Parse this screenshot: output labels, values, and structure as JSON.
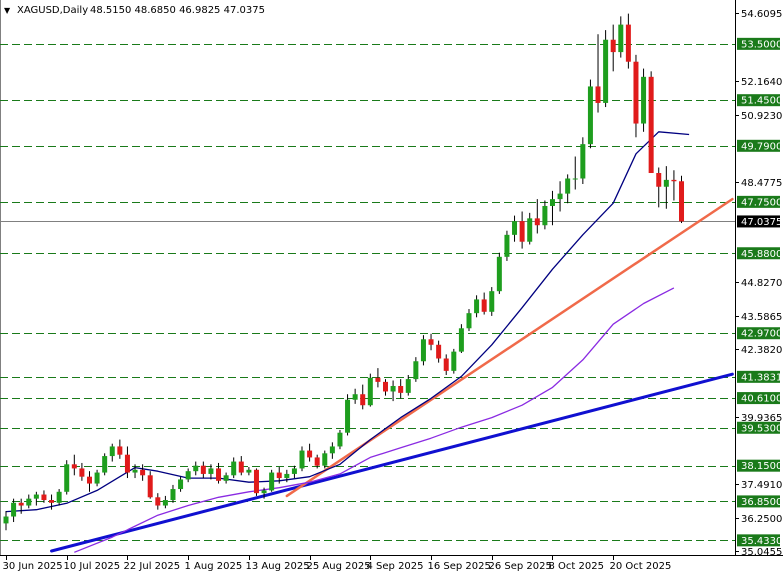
{
  "header": {
    "collapse_glyph": "▼",
    "symbol": "XAGUSD,Daily",
    "ohlc": "48.5150 48.6850 46.9825 47.0375"
  },
  "colors": {
    "background": "#ffffff",
    "bull": "#1e9e1e",
    "bear": "#e01b1b",
    "sma_short": "#000080",
    "sma_long": "#8a2be2",
    "trend_red": "#f06a4a",
    "trend_blue": "#1010d0",
    "level_line": "#1a7a1a",
    "level_label_bg": "#1a7a1a",
    "price_label_bg": "#000000"
  },
  "chart_data": {
    "type": "candlestick",
    "symbol": "XAGUSD",
    "timeframe": "Daily",
    "ylim": [
      35.0455,
      54.95
    ],
    "y_ticks": [
      "54.6095",
      "52.1640",
      "50.9230",
      "48.4775",
      "44.8270",
      "43.5865",
      "42.3820",
      "39.9365",
      "37.4910",
      "36.2500",
      "35.0455"
    ],
    "x_ticks": [
      {
        "label": "30 Jun 2025",
        "i": 0
      },
      {
        "label": "10 Jul 2025",
        "i": 8
      },
      {
        "label": "22 Jul 2025",
        "i": 16
      },
      {
        "label": "1 Aug 2025",
        "i": 24
      },
      {
        "label": "13 Aug 2025",
        "i": 32
      },
      {
        "label": "25 Aug 2025",
        "i": 40
      },
      {
        "label": "4 Sep 2025",
        "i": 48
      },
      {
        "label": "16 Sep 2025",
        "i": 56
      },
      {
        "label": "26 Sep 2025",
        "i": 64
      },
      {
        "label": "8 Oct 2025",
        "i": 72
      },
      {
        "label": "20 Oct 2025",
        "i": 80
      }
    ],
    "levels": [
      "53.5000",
      "51.4500",
      "49.7900",
      "47.7500",
      "45.8800",
      "42.9700",
      "41.3831",
      "40.6100",
      "39.5300",
      "38.1500",
      "36.8500",
      "35.4330"
    ],
    "current_price": "47.0375",
    "candles": [
      [
        36.05,
        36.5,
        35.8,
        36.3
      ],
      [
        36.3,
        36.95,
        36.1,
        36.8
      ],
      [
        36.8,
        36.95,
        36.4,
        36.7
      ],
      [
        36.7,
        37.1,
        36.6,
        36.95
      ],
      [
        36.95,
        37.2,
        36.7,
        37.1
      ],
      [
        37.1,
        37.25,
        36.8,
        36.9
      ],
      [
        36.9,
        37.1,
        36.55,
        36.8
      ],
      [
        36.8,
        37.3,
        36.7,
        37.2
      ],
      [
        37.2,
        38.35,
        37.1,
        38.2
      ],
      [
        38.2,
        38.55,
        37.8,
        38.05
      ],
      [
        38.05,
        38.25,
        37.6,
        37.75
      ],
      [
        37.75,
        37.95,
        37.2,
        37.5
      ],
      [
        37.5,
        38.0,
        37.4,
        37.9
      ],
      [
        37.9,
        38.6,
        37.8,
        38.5
      ],
      [
        38.5,
        38.95,
        38.3,
        38.85
      ],
      [
        38.85,
        39.1,
        38.4,
        38.55
      ],
      [
        38.55,
        38.85,
        37.7,
        37.9
      ],
      [
        37.9,
        38.2,
        37.7,
        38.0
      ],
      [
        38.0,
        38.2,
        37.6,
        37.8
      ],
      [
        37.8,
        37.95,
        36.95,
        37.0
      ],
      [
        37.0,
        37.15,
        36.55,
        36.7
      ],
      [
        36.7,
        37.05,
        36.6,
        36.9
      ],
      [
        36.9,
        37.45,
        36.8,
        37.3
      ],
      [
        37.3,
        37.75,
        37.2,
        37.65
      ],
      [
        37.65,
        38.05,
        37.55,
        37.95
      ],
      [
        37.95,
        38.3,
        37.8,
        38.15
      ],
      [
        38.15,
        38.3,
        37.7,
        37.85
      ],
      [
        37.85,
        38.2,
        37.65,
        38.05
      ],
      [
        38.05,
        38.25,
        37.5,
        37.6
      ],
      [
        37.6,
        37.9,
        37.5,
        37.8
      ],
      [
        37.8,
        38.45,
        37.7,
        38.3
      ],
      [
        38.3,
        38.5,
        37.8,
        37.9
      ],
      [
        37.9,
        38.1,
        37.8,
        38.0
      ],
      [
        38.0,
        38.05,
        37.05,
        37.15
      ],
      [
        37.15,
        37.35,
        36.95,
        37.25
      ],
      [
        37.25,
        38.0,
        37.2,
        37.9
      ],
      [
        37.9,
        38.1,
        37.5,
        37.7
      ],
      [
        37.7,
        38.0,
        37.55,
        37.85
      ],
      [
        37.85,
        38.15,
        37.7,
        38.05
      ],
      [
        38.05,
        38.85,
        37.95,
        38.7
      ],
      [
        38.7,
        38.95,
        38.3,
        38.45
      ],
      [
        38.45,
        38.55,
        38.05,
        38.15
      ],
      [
        38.15,
        38.7,
        38.05,
        38.6
      ],
      [
        38.6,
        39.0,
        38.4,
        38.85
      ],
      [
        38.85,
        39.45,
        38.75,
        39.35
      ],
      [
        39.35,
        40.75,
        39.25,
        40.55
      ],
      [
        40.55,
        40.95,
        40.4,
        40.75
      ],
      [
        40.75,
        41.1,
        40.2,
        40.35
      ],
      [
        40.35,
        41.5,
        40.3,
        41.35
      ],
      [
        41.35,
        41.7,
        41.0,
        41.2
      ],
      [
        41.2,
        41.3,
        40.7,
        40.85
      ],
      [
        40.85,
        41.25,
        40.5,
        41.05
      ],
      [
        41.05,
        41.3,
        40.6,
        40.8
      ],
      [
        40.8,
        41.45,
        40.7,
        41.3
      ],
      [
        41.3,
        42.1,
        41.2,
        41.95
      ],
      [
        41.95,
        42.9,
        41.8,
        42.75
      ],
      [
        42.75,
        42.95,
        42.35,
        42.55
      ],
      [
        42.55,
        42.7,
        41.9,
        42.05
      ],
      [
        42.05,
        42.2,
        41.45,
        41.6
      ],
      [
        41.6,
        42.4,
        41.5,
        42.3
      ],
      [
        42.3,
        43.3,
        42.25,
        43.15
      ],
      [
        43.15,
        43.85,
        43.05,
        43.7
      ],
      [
        43.7,
        44.35,
        43.55,
        44.2
      ],
      [
        44.2,
        44.45,
        43.65,
        43.75
      ],
      [
        43.75,
        44.65,
        43.6,
        44.5
      ],
      [
        44.5,
        45.9,
        44.4,
        45.75
      ],
      [
        45.75,
        46.7,
        45.6,
        46.55
      ],
      [
        46.55,
        47.25,
        46.3,
        47.05
      ],
      [
        47.05,
        47.4,
        46.05,
        46.3
      ],
      [
        46.3,
        47.35,
        46.2,
        47.15
      ],
      [
        47.15,
        47.85,
        46.6,
        46.9
      ],
      [
        46.9,
        47.8,
        46.75,
        47.6
      ],
      [
        47.6,
        48.15,
        46.9,
        47.85
      ],
      [
        47.85,
        48.5,
        47.4,
        48.05
      ],
      [
        48.05,
        48.75,
        47.7,
        48.6
      ],
      [
        48.6,
        49.4,
        48.2,
        48.6
      ],
      [
        48.6,
        50.1,
        48.4,
        49.85
      ],
      [
        49.85,
        52.2,
        49.7,
        51.95
      ],
      [
        51.95,
        53.85,
        51.0,
        51.35
      ],
      [
        51.35,
        54.0,
        51.2,
        53.65
      ],
      [
        53.65,
        54.2,
        52.5,
        53.2
      ],
      [
        53.2,
        54.5,
        53.0,
        54.2
      ],
      [
        54.2,
        54.6,
        52.6,
        52.85
      ],
      [
        52.85,
        53.1,
        50.1,
        50.6
      ],
      [
        50.6,
        52.6,
        50.3,
        52.3
      ],
      [
        52.3,
        52.5,
        48.9,
        48.8
      ],
      [
        48.8,
        49.0,
        47.55,
        48.3
      ],
      [
        48.3,
        49.05,
        47.5,
        48.55
      ],
      [
        48.55,
        48.9,
        47.8,
        48.5
      ],
      [
        48.5,
        48.7,
        46.98,
        47.04
      ]
    ],
    "sma_short_path": [
      [
        0,
        36.48
      ],
      [
        4,
        36.55
      ],
      [
        8,
        36.78
      ],
      [
        12,
        37.25
      ],
      [
        15,
        37.75
      ],
      [
        17,
        38.08
      ],
      [
        20,
        37.95
      ],
      [
        24,
        37.7
      ],
      [
        28,
        37.7
      ],
      [
        32,
        37.55
      ],
      [
        36,
        37.6
      ],
      [
        40,
        37.75
      ],
      [
        44,
        38.2
      ],
      [
        48,
        39.1
      ],
      [
        52,
        39.9
      ],
      [
        56,
        40.6
      ],
      [
        60,
        41.4
      ],
      [
        64,
        42.55
      ],
      [
        68,
        43.9
      ],
      [
        72,
        45.3
      ],
      [
        76,
        46.55
      ],
      [
        80,
        47.7
      ],
      [
        83,
        49.5
      ],
      [
        86,
        50.3
      ],
      [
        90,
        50.2
      ]
    ],
    "sma_long_path": [
      [
        9,
        35.0
      ],
      [
        14,
        35.55
      ],
      [
        20,
        36.35
      ],
      [
        24,
        36.7
      ],
      [
        28,
        37.0
      ],
      [
        32,
        37.2
      ],
      [
        36,
        37.35
      ],
      [
        40,
        37.55
      ],
      [
        44,
        37.85
      ],
      [
        48,
        38.45
      ],
      [
        52,
        38.8
      ],
      [
        56,
        39.15
      ],
      [
        60,
        39.55
      ],
      [
        64,
        39.9
      ],
      [
        68,
        40.35
      ],
      [
        72,
        41.0
      ],
      [
        76,
        42.0
      ],
      [
        80,
        43.3
      ],
      [
        84,
        44.05
      ],
      [
        88,
        44.62
      ]
    ],
    "trend_red": {
      "from": [
        37,
        37.05
      ],
      "to_x": 95.7,
      "to_y": 47.85
    },
    "trend_blue": {
      "from": [
        6,
        35.0455
      ],
      "to_x": 95.7,
      "to_y": 41.48
    }
  }
}
